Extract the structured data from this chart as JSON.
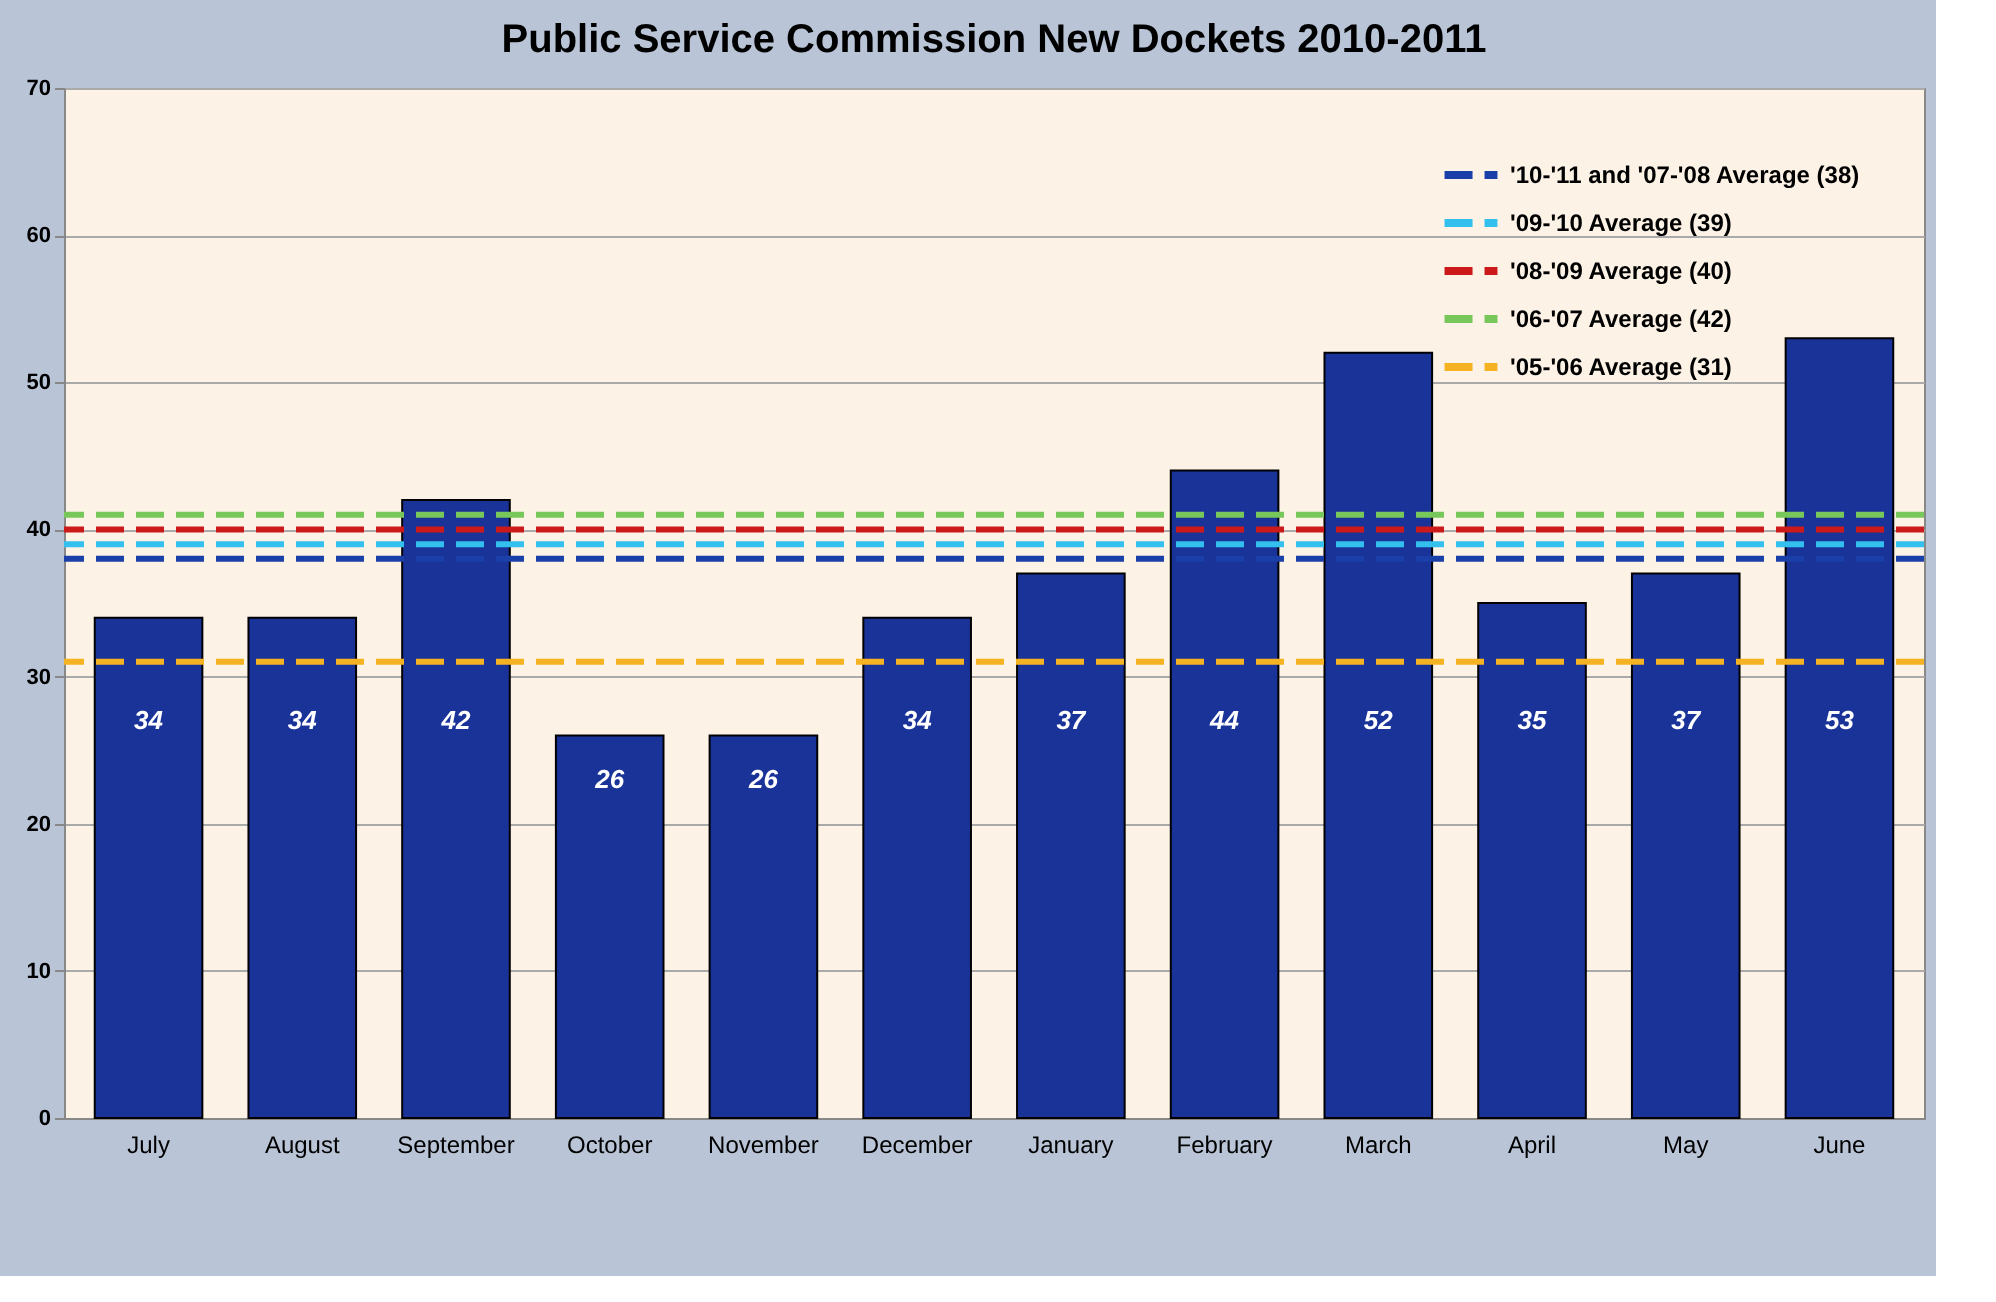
{
  "chart_data": {
    "type": "bar",
    "title": "Public Service Commission New Dockets 2010-2011",
    "categories": [
      "July",
      "August",
      "September",
      "October",
      "November",
      "December",
      "January",
      "February",
      "March",
      "April",
      "May",
      "June"
    ],
    "values": [
      34,
      34,
      42,
      26,
      26,
      34,
      37,
      44,
      52,
      35,
      37,
      53
    ],
    "color": "#1a3399",
    "data_labels": true,
    "ylim": [
      0,
      70
    ],
    "yticks": [
      0,
      10,
      20,
      30,
      40,
      50,
      60,
      70
    ],
    "grid": "y",
    "legend": "top right",
    "ref_lines": [
      {
        "axis": "y",
        "value": 38,
        "label": "'10-'11  and '07-'08 Average (38)",
        "color": "#1a3fa8",
        "line_style": "dashed"
      },
      {
        "axis": "y",
        "value": 39,
        "label": "'09-'10 Average (39)",
        "color": "#33c0ee",
        "line_style": "dashed"
      },
      {
        "axis": "y",
        "value": 40,
        "label": "'08-'09 Average (40)",
        "color": "#cc1a1a",
        "line_style": "dashed"
      },
      {
        "axis": "y",
        "value": 41,
        "label": "'06-'07 Average (42)",
        "color": "#77c75a",
        "line_style": "dashed"
      },
      {
        "axis": "y",
        "value": 31,
        "label": "'05-'06 Average (31)",
        "color": "#f5b324",
        "line_style": "dashed"
      }
    ]
  }
}
